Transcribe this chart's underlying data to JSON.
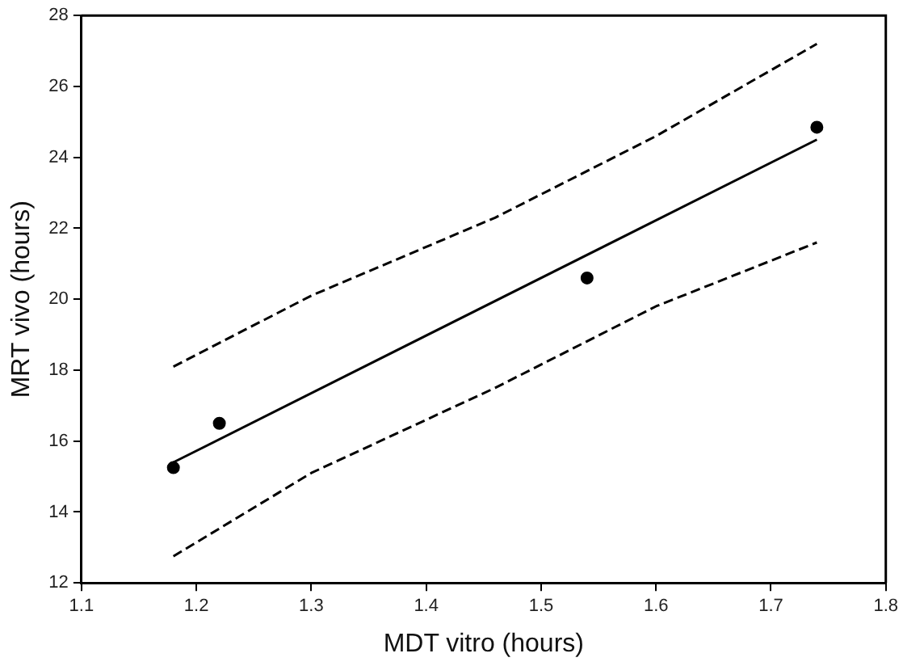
{
  "chart_data": {
    "type": "scatter",
    "xlabel": "MDT vitro (hours)",
    "ylabel": "MRT vivo (hours)",
    "xlim": [
      1.1,
      1.8
    ],
    "xticks": [
      1.1,
      1.2,
      1.3,
      1.4,
      1.5,
      1.6,
      1.7,
      1.8
    ],
    "ylim": [
      12,
      28
    ],
    "yticks": [
      12,
      14,
      16,
      18,
      20,
      22,
      24,
      26,
      28
    ],
    "grid": false,
    "legend": false,
    "marker": "circle",
    "series": [
      {
        "type": "scatter",
        "color": "#000000",
        "x": [
          1.18,
          1.22,
          1.54,
          1.74
        ],
        "values": [
          15.25,
          16.5,
          20.6,
          24.85
        ]
      },
      {
        "type": "line",
        "color": "#000000",
        "line_style": "solid",
        "marker": "none",
        "x": [
          1.18,
          1.74
        ],
        "values": [
          15.4,
          24.5
        ]
      },
      {
        "type": "line",
        "color": "#000000",
        "line_style": "dashed",
        "marker": "none",
        "x": [
          1.18,
          1.3,
          1.46,
          1.6,
          1.74
        ],
        "values": [
          18.1,
          20.1,
          22.3,
          24.6,
          27.2
        ]
      },
      {
        "type": "line",
        "color": "#000000",
        "line_style": "dashed",
        "marker": "none",
        "x": [
          1.18,
          1.3,
          1.46,
          1.6,
          1.74
        ],
        "values": [
          12.75,
          15.1,
          17.5,
          19.8,
          21.6
        ]
      }
    ]
  }
}
